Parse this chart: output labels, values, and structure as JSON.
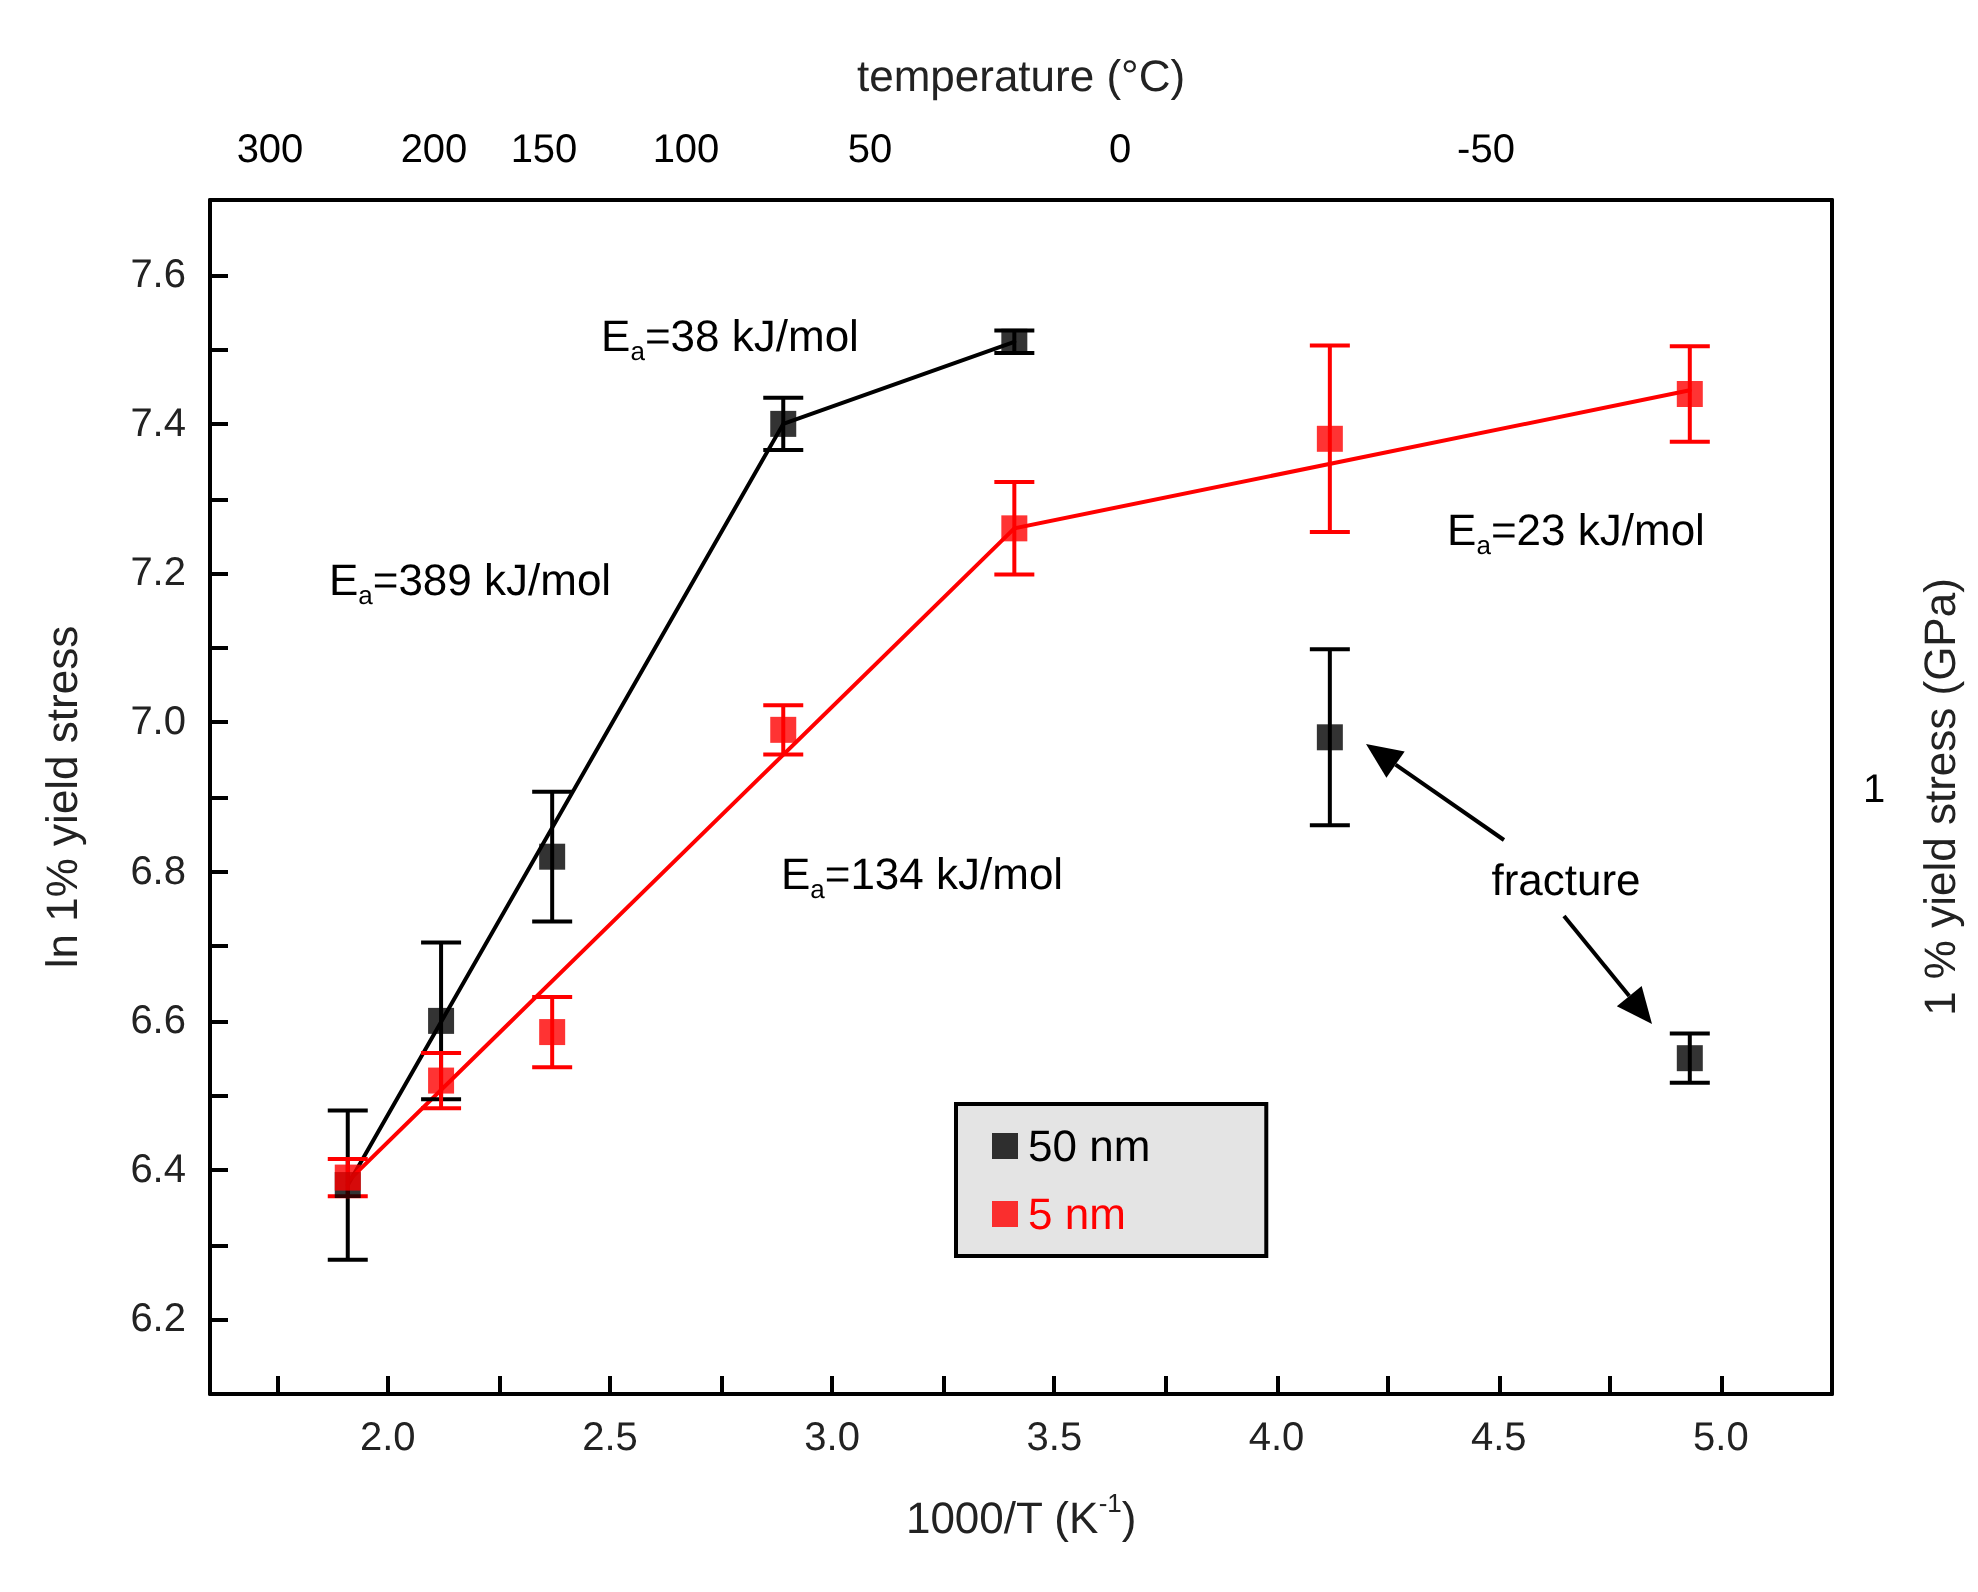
{
  "chart_data": {
    "type": "scatter",
    "xlabel": "1000/T (K$^{-1}$)",
    "ylabel": "ln 1% yield stress",
    "y2label": "1 % yield stress (GPa)",
    "x2label": "temperature (°C)",
    "xlim": [
      1.6,
      5.25
    ],
    "xticks": [
      {
        "value": 1.75,
        "label": null
      },
      {
        "value": 2,
        "label": "2.0"
      },
      {
        "value": 2.25,
        "label": null
      },
      {
        "value": 2.5,
        "label": "2.5"
      },
      {
        "value": 2.75,
        "label": null
      },
      {
        "value": 3,
        "label": "3.0"
      },
      {
        "value": 3.25,
        "label": null
      },
      {
        "value": 3.5,
        "label": "3.5"
      },
      {
        "value": 3.75,
        "label": null
      },
      {
        "value": 4,
        "label": "4.0"
      },
      {
        "value": 4.25,
        "label": null
      },
      {
        "value": 4.5,
        "label": "4.5"
      },
      {
        "value": 4.75,
        "label": null
      },
      {
        "value": 5,
        "label": "5.0"
      }
    ],
    "ylim": [
      6.1,
      7.7
    ],
    "yticks": [
      {
        "value": 6.2,
        "label": "6.2"
      },
      {
        "value": 6.3,
        "label": null
      },
      {
        "value": 6.4,
        "label": "6.4"
      },
      {
        "value": 6.5,
        "label": null
      },
      {
        "value": 6.6,
        "label": "6.6"
      },
      {
        "value": 6.7,
        "label": null
      },
      {
        "value": 6.8,
        "label": "6.8"
      },
      {
        "value": 6.9,
        "label": null
      },
      {
        "value": 7,
        "label": "7.0"
      },
      {
        "value": 7.1,
        "label": null
      },
      {
        "value": 7.2,
        "label": "7.2"
      },
      {
        "value": 7.3,
        "label": null
      },
      {
        "value": 7.4,
        "label": "7.4"
      },
      {
        "value": 7.5,
        "label": null
      },
      {
        "value": 7.6,
        "label": "7.6"
      }
    ],
    "marker": "square",
    "legend": "bottom",
    "series": [
      {
        "name": "50 nm",
        "color": "#000000",
        "x": [
          1.91,
          2.12,
          2.37,
          2.89,
          3.41,
          4.12,
          4.93
        ],
        "values": [
          6.38,
          6.6,
          6.82,
          7.4,
          7.51,
          6.98,
          6.55
        ],
        "errors": [
          0.1,
          0.105,
          0.087,
          0.035,
          0.015,
          0.118,
          0.033
        ]
      },
      {
        "name": "5 nm",
        "color": "#ff0000",
        "x": [
          1.91,
          2.12,
          2.37,
          2.89,
          3.41,
          4.12,
          4.93
        ],
        "values": [
          6.39,
          6.52,
          6.585,
          6.99,
          7.26,
          7.38,
          7.44
        ],
        "errors": [
          0.025,
          0.037,
          0.047,
          0.033,
          0.062,
          0.125,
          0.064
        ]
      },
      {
        "type": "line",
        "color": "#000000",
        "marker": "none",
        "x": [
          1.91,
          2.89,
          3.41
        ],
        "values": [
          6.38,
          7.4,
          7.51
        ]
      },
      {
        "type": "line",
        "color": "#ff0000",
        "marker": "none",
        "x": [
          1.91,
          3.41,
          4.93
        ],
        "values": [
          6.385,
          7.26,
          7.445
        ]
      }
    ],
    "annotations": [
      "E$_{a}$=38 kJ/mol",
      "E$_{a}$=389 kJ/mol",
      "E$_{a}$=134 kJ/mol",
      "E$_{a}$=23 kJ/mol",
      "fracture",
      "1",
      "300",
      "200",
      "150",
      "100",
      "50",
      "0",
      "-50"
    ]
  }
}
